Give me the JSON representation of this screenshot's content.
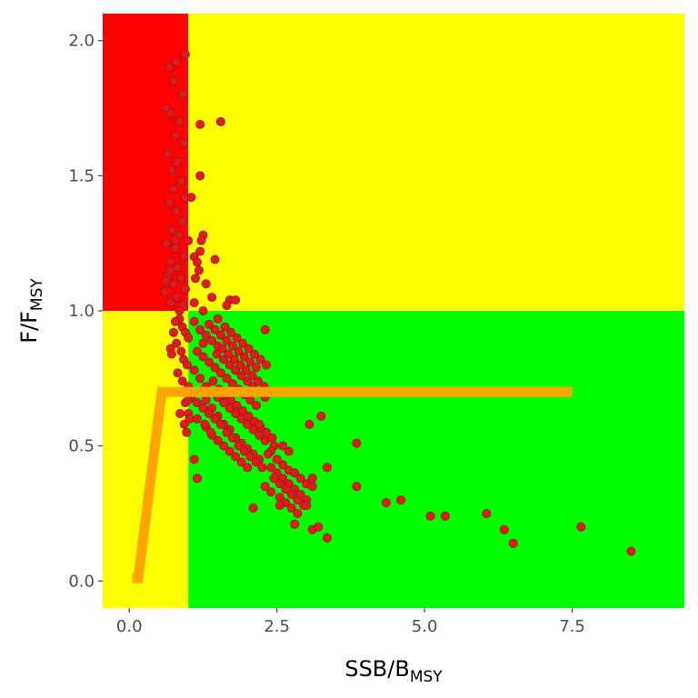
{
  "chart_data": {
    "type": "scatter",
    "xlabel": {
      "main": "SSB/B",
      "sub": "MSY"
    },
    "ylabel": {
      "main": "F/F",
      "sub": "MSY"
    },
    "xlim": [
      -0.45,
      9.4
    ],
    "ylim": [
      -0.1,
      2.1
    ],
    "x_ticks": [
      0.0,
      2.5,
      5.0,
      7.5
    ],
    "x_tick_labels": [
      "0.0",
      "2.5",
      "5.0",
      "7.5"
    ],
    "y_ticks": [
      0.0,
      0.5,
      1.0,
      1.5,
      2.0
    ],
    "y_tick_labels": [
      "0.0",
      "0.5",
      "1.0",
      "1.5",
      "2.0"
    ],
    "grid": false,
    "zones": [
      {
        "name": "overfished-overfishing",
        "x": [
          -0.45,
          1.0
        ],
        "y": [
          1.0,
          2.1
        ],
        "color": "#ff0000"
      },
      {
        "name": "overfishing",
        "x": [
          1.0,
          9.4
        ],
        "y": [
          1.0,
          2.1
        ],
        "color": "#ffff00"
      },
      {
        "name": "overfished",
        "x": [
          -0.45,
          1.0
        ],
        "y": [
          -0.1,
          1.0
        ],
        "color": "#ffff00"
      },
      {
        "name": "sustainable",
        "x": [
          1.0,
          9.4
        ],
        "y": [
          -0.1,
          1.0
        ],
        "color": "#00ff00"
      }
    ],
    "control_rule": {
      "color": "#ffa500",
      "x": [
        0.05,
        0.15,
        0.55,
        7.5
      ],
      "y": [
        0.01,
        0.01,
        0.7,
        0.7
      ]
    },
    "point_color": "#dd1c1c",
    "point_stroke": "#a01414",
    "points": [
      [
        0.95,
        1.95
      ],
      [
        0.68,
        1.9
      ],
      [
        0.8,
        1.92
      ],
      [
        0.75,
        1.85
      ],
      [
        0.9,
        1.8
      ],
      [
        0.62,
        1.75
      ],
      [
        0.7,
        1.73
      ],
      [
        0.85,
        1.7
      ],
      [
        0.78,
        1.65
      ],
      [
        0.92,
        1.62
      ],
      [
        0.65,
        1.58
      ],
      [
        0.82,
        1.55
      ],
      [
        0.72,
        1.52
      ],
      [
        0.88,
        1.48
      ],
      [
        0.75,
        1.45
      ],
      [
        0.95,
        1.42
      ],
      [
        0.68,
        1.4
      ],
      [
        0.8,
        1.37
      ],
      [
        0.9,
        1.33
      ],
      [
        0.72,
        1.3
      ],
      [
        0.85,
        1.28
      ],
      [
        0.63,
        1.25
      ],
      [
        0.78,
        1.23
      ],
      [
        0.92,
        1.2
      ],
      [
        0.7,
        1.18
      ],
      [
        0.82,
        1.16
      ],
      [
        0.65,
        1.13
      ],
      [
        0.88,
        1.12
      ],
      [
        0.75,
        1.1
      ],
      [
        0.95,
        1.08
      ],
      [
        0.6,
        1.07
      ],
      [
        0.8,
        1.05
      ],
      [
        0.7,
        1.03
      ],
      [
        0.9,
        1.02
      ],
      [
        0.85,
        1.0
      ],
      [
        0.62,
        1.11
      ],
      [
        0.77,
        1.26
      ],
      [
        0.69,
        1.15
      ],
      [
        1.2,
        1.69
      ],
      [
        1.55,
        1.7
      ],
      [
        1.2,
        1.5
      ],
      [
        1.1,
        1.2
      ],
      [
        1.25,
        1.28
      ],
      [
        1.22,
        1.26
      ],
      [
        1.2,
        1.22
      ],
      [
        1.15,
        1.18
      ],
      [
        1.18,
        1.15
      ],
      [
        1.12,
        1.12
      ],
      [
        1.45,
        1.19
      ],
      [
        1.3,
        1.1
      ],
      [
        1.4,
        1.05
      ],
      [
        1.7,
        1.04
      ],
      [
        1.8,
        1.04
      ],
      [
        1.65,
        1.02
      ],
      [
        1.1,
        1.03
      ],
      [
        1.25,
        1.0
      ],
      [
        1.05,
        1.42
      ],
      [
        1.0,
        1.26
      ],
      [
        0.85,
        0.97
      ],
      [
        0.9,
        0.94
      ],
      [
        0.95,
        0.92
      ],
      [
        1.0,
        0.9
      ],
      [
        0.8,
        0.88
      ],
      [
        0.88,
        0.85
      ],
      [
        0.92,
        0.82
      ],
      [
        0.98,
        0.8
      ],
      [
        0.7,
        0.86
      ],
      [
        0.75,
        0.92
      ],
      [
        0.82,
        0.77
      ],
      [
        0.9,
        0.74
      ],
      [
        1.0,
        0.72
      ],
      [
        1.05,
        0.68
      ],
      [
        0.95,
        0.66
      ],
      [
        1.0,
        0.62
      ],
      [
        0.93,
        0.58
      ],
      [
        0.97,
        0.55
      ],
      [
        1.02,
        0.6
      ],
      [
        1.0,
        0.67
      ],
      [
        0.88,
        0.7
      ],
      [
        0.78,
        0.96
      ],
      [
        0.72,
        0.84
      ],
      [
        0.86,
        0.62
      ],
      [
        1.1,
        0.96
      ],
      [
        1.2,
        0.93
      ],
      [
        1.3,
        0.91
      ],
      [
        1.4,
        0.89
      ],
      [
        1.5,
        0.87
      ],
      [
        1.15,
        0.85
      ],
      [
        1.25,
        0.83
      ],
      [
        1.35,
        0.81
      ],
      [
        1.45,
        0.79
      ],
      [
        1.55,
        0.77
      ],
      [
        1.65,
        0.75
      ],
      [
        1.75,
        0.73
      ],
      [
        1.85,
        0.71
      ],
      [
        1.95,
        0.69
      ],
      [
        2.05,
        0.67
      ],
      [
        2.15,
        0.65
      ],
      [
        1.2,
        0.7
      ],
      [
        1.3,
        0.67
      ],
      [
        1.4,
        0.64
      ],
      [
        1.5,
        0.61
      ],
      [
        1.6,
        0.58
      ],
      [
        1.7,
        0.56
      ],
      [
        1.8,
        0.53
      ],
      [
        1.9,
        0.51
      ],
      [
        2.0,
        0.49
      ],
      [
        2.1,
        0.47
      ],
      [
        2.2,
        0.45
      ],
      [
        1.1,
        0.78
      ],
      [
        1.2,
        0.75
      ],
      [
        1.3,
        0.72
      ],
      [
        1.4,
        0.7
      ],
      [
        1.5,
        0.68
      ],
      [
        1.6,
        0.66
      ],
      [
        1.7,
        0.64
      ],
      [
        1.8,
        0.62
      ],
      [
        1.9,
        0.6
      ],
      [
        2.0,
        0.58
      ],
      [
        2.1,
        0.56
      ],
      [
        2.2,
        0.54
      ],
      [
        2.3,
        0.52
      ],
      [
        1.35,
        0.95
      ],
      [
        1.45,
        0.93
      ],
      [
        1.55,
        0.91
      ],
      [
        1.65,
        0.89
      ],
      [
        1.75,
        0.87
      ],
      [
        1.85,
        0.85
      ],
      [
        1.95,
        0.83
      ],
      [
        2.05,
        0.81
      ],
      [
        2.15,
        0.79
      ],
      [
        1.25,
        0.88
      ],
      [
        1.6,
        0.82
      ],
      [
        1.7,
        0.8
      ],
      [
        1.8,
        0.78
      ],
      [
        1.9,
        0.76
      ],
      [
        2.0,
        0.74
      ],
      [
        2.1,
        0.72
      ],
      [
        2.2,
        0.7
      ],
      [
        2.3,
        0.68
      ],
      [
        1.15,
        0.66
      ],
      [
        1.25,
        0.64
      ],
      [
        1.35,
        0.62
      ],
      [
        1.45,
        0.6
      ],
      [
        1.55,
        0.58
      ],
      [
        1.65,
        0.55
      ],
      [
        1.75,
        0.53
      ],
      [
        1.85,
        0.5
      ],
      [
        1.95,
        0.48
      ],
      [
        2.05,
        0.46
      ],
      [
        2.15,
        0.44
      ],
      [
        2.25,
        0.42
      ],
      [
        1.5,
        0.97
      ],
      [
        1.62,
        0.94
      ],
      [
        1.72,
        0.92
      ],
      [
        1.82,
        0.9
      ],
      [
        1.92,
        0.88
      ],
      [
        2.02,
        0.86
      ],
      [
        2.12,
        0.84
      ],
      [
        2.22,
        0.82
      ],
      [
        2.32,
        0.8
      ],
      [
        1.42,
        0.74
      ],
      [
        1.52,
        0.71
      ],
      [
        1.62,
        0.69
      ],
      [
        1.72,
        0.67
      ],
      [
        1.82,
        0.65
      ],
      [
        1.92,
        0.63
      ],
      [
        2.02,
        0.61
      ],
      [
        2.12,
        0.59
      ],
      [
        2.22,
        0.57
      ],
      [
        2.32,
        0.55
      ],
      [
        2.42,
        0.53
      ],
      [
        1.3,
        0.57
      ],
      [
        1.4,
        0.54
      ],
      [
        1.5,
        0.52
      ],
      [
        1.6,
        0.5
      ],
      [
        1.7,
        0.48
      ],
      [
        1.8,
        0.46
      ],
      [
        1.9,
        0.44
      ],
      [
        2.0,
        0.42
      ],
      [
        1.15,
        0.6
      ],
      [
        1.28,
        0.58
      ],
      [
        1.38,
        0.55
      ],
      [
        1.48,
        0.84
      ],
      [
        1.58,
        0.86
      ],
      [
        1.68,
        0.84
      ],
      [
        1.78,
        0.82
      ],
      [
        1.88,
        0.8
      ],
      [
        1.98,
        0.78
      ],
      [
        2.08,
        0.76
      ],
      [
        2.18,
        0.74
      ],
      [
        2.28,
        0.72
      ],
      [
        1.1,
        0.45
      ],
      [
        1.15,
        0.38
      ],
      [
        2.3,
        0.93
      ],
      [
        2.45,
        0.5
      ],
      [
        2.4,
        0.48
      ],
      [
        2.5,
        0.45
      ],
      [
        2.6,
        0.43
      ],
      [
        2.7,
        0.41
      ],
      [
        2.8,
        0.4
      ],
      [
        2.9,
        0.38
      ],
      [
        3.0,
        0.36
      ],
      [
        3.1,
        0.35
      ],
      [
        2.4,
        0.42
      ],
      [
        2.5,
        0.4
      ],
      [
        2.6,
        0.38
      ],
      [
        2.7,
        0.36
      ],
      [
        2.8,
        0.34
      ],
      [
        2.9,
        0.32
      ],
      [
        3.0,
        0.3
      ],
      [
        2.45,
        0.38
      ],
      [
        2.55,
        0.36
      ],
      [
        2.65,
        0.34
      ],
      [
        2.75,
        0.32
      ],
      [
        2.85,
        0.3
      ],
      [
        2.95,
        0.28
      ],
      [
        2.3,
        0.35
      ],
      [
        2.4,
        0.33
      ],
      [
        2.55,
        0.31
      ],
      [
        2.65,
        0.29
      ],
      [
        2.75,
        0.27
      ],
      [
        2.85,
        0.25
      ],
      [
        2.6,
        0.5
      ],
      [
        2.7,
        0.48
      ],
      [
        2.8,
        0.21
      ],
      [
        3.1,
        0.19
      ],
      [
        3.0,
        0.28
      ],
      [
        3.2,
        0.2
      ],
      [
        3.35,
        0.16
      ],
      [
        3.05,
        0.58
      ],
      [
        3.25,
        0.61
      ],
      [
        3.35,
        0.42
      ],
      [
        3.1,
        0.38
      ],
      [
        2.2,
        0.58
      ],
      [
        2.1,
        0.27
      ],
      [
        2.35,
        0.47
      ],
      [
        2.55,
        0.28
      ],
      [
        3.85,
        0.51
      ],
      [
        3.85,
        0.35
      ],
      [
        4.35,
        0.29
      ],
      [
        4.6,
        0.3
      ],
      [
        5.1,
        0.24
      ],
      [
        5.35,
        0.24
      ],
      [
        6.05,
        0.25
      ],
      [
        6.35,
        0.19
      ],
      [
        6.5,
        0.14
      ],
      [
        7.65,
        0.2
      ],
      [
        8.5,
        0.11
      ]
    ]
  }
}
